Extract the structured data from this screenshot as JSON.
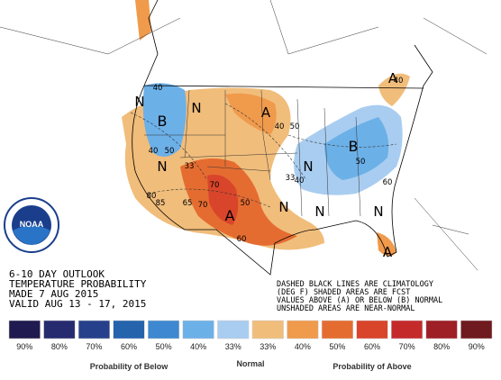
{
  "header": {
    "lines": [
      "6-10 DAY OUTLOOK",
      "TEMPERATURE PROBABILITY",
      "MADE  7 AUG 2015",
      "VALID  AUG 13 - 17, 2015"
    ]
  },
  "logo": {
    "text": "NOAA"
  },
  "note": {
    "lines": [
      "DASHED BLACK LINES ARE CLIMATOLOGY",
      "(DEG F) SHADED AREAS ARE FCST",
      "VALUES ABOVE (A) OR BELOW (B) NORMAL",
      "UNSHADED AREAS ARE NEAR-NORMAL"
    ]
  },
  "map_labels": [
    "B",
    "N",
    "N",
    "A",
    "N",
    "A",
    "N",
    "B",
    "N",
    "A",
    "N",
    "N",
    "A",
    "40",
    "50",
    "60",
    "70",
    "33",
    "50",
    "40",
    "40",
    "50",
    "33",
    "40",
    "50",
    "60",
    "70",
    "80",
    "85",
    "65",
    "40"
  ],
  "legend": {
    "cells": [
      {
        "label": "90%",
        "color": "#1f1a4f"
      },
      {
        "label": "80%",
        "color": "#262a6e"
      },
      {
        "label": "70%",
        "color": "#27408b"
      },
      {
        "label": "60%",
        "color": "#2563ad"
      },
      {
        "label": "50%",
        "color": "#3d88d0"
      },
      {
        "label": "40%",
        "color": "#6cb0e8"
      },
      {
        "label": "33%",
        "color": "#a9cdf0"
      },
      {
        "label": "33%",
        "color": "#f1bd7b"
      },
      {
        "label": "40%",
        "color": "#f09a4c"
      },
      {
        "label": "50%",
        "color": "#e56c31"
      },
      {
        "label": "60%",
        "color": "#d9452a"
      },
      {
        "label": "70%",
        "color": "#c42a2a"
      },
      {
        "label": "80%",
        "color": "#9e1f26"
      },
      {
        "label": "90%",
        "color": "#6e1a1e"
      }
    ],
    "below": "Probability of Below",
    "normal": "Normal",
    "above": "Probability of Above"
  }
}
